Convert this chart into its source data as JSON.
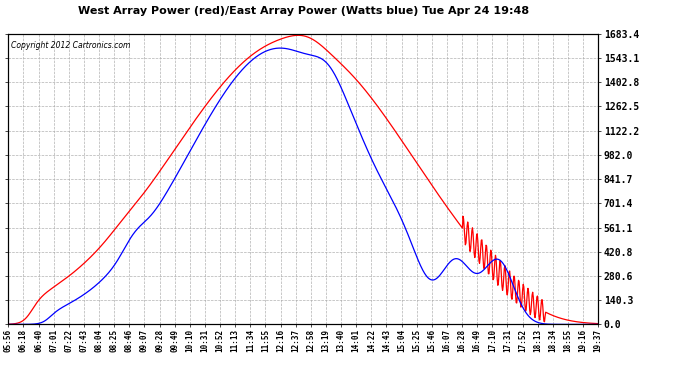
{
  "title": "West Array Power (red)/East Array Power (Watts blue) Tue Apr 24 19:48",
  "copyright": "Copyright 2012 Cartronics.com",
  "background_color": "#ffffff",
  "plot_bg_color": "#ffffff",
  "grid_color": "#aaaaaa",
  "red_color": "#ff0000",
  "blue_color": "#0000ff",
  "yticks": [
    0.0,
    140.3,
    280.6,
    420.8,
    561.1,
    701.4,
    841.7,
    982.0,
    1122.2,
    1262.5,
    1402.8,
    1543.1,
    1683.4
  ],
  "xtick_labels": [
    "05:56",
    "06:18",
    "06:40",
    "07:01",
    "07:22",
    "07:43",
    "08:04",
    "08:25",
    "08:46",
    "09:07",
    "09:28",
    "09:49",
    "10:10",
    "10:31",
    "10:52",
    "11:13",
    "11:34",
    "11:55",
    "12:16",
    "12:37",
    "12:58",
    "13:19",
    "13:40",
    "14:01",
    "14:22",
    "14:43",
    "15:04",
    "15:25",
    "15:46",
    "16:07",
    "16:28",
    "16:49",
    "17:10",
    "17:31",
    "17:52",
    "18:13",
    "18:34",
    "18:55",
    "19:16",
    "19:37"
  ],
  "ymax": 1683.4,
  "ymin": 0.0
}
